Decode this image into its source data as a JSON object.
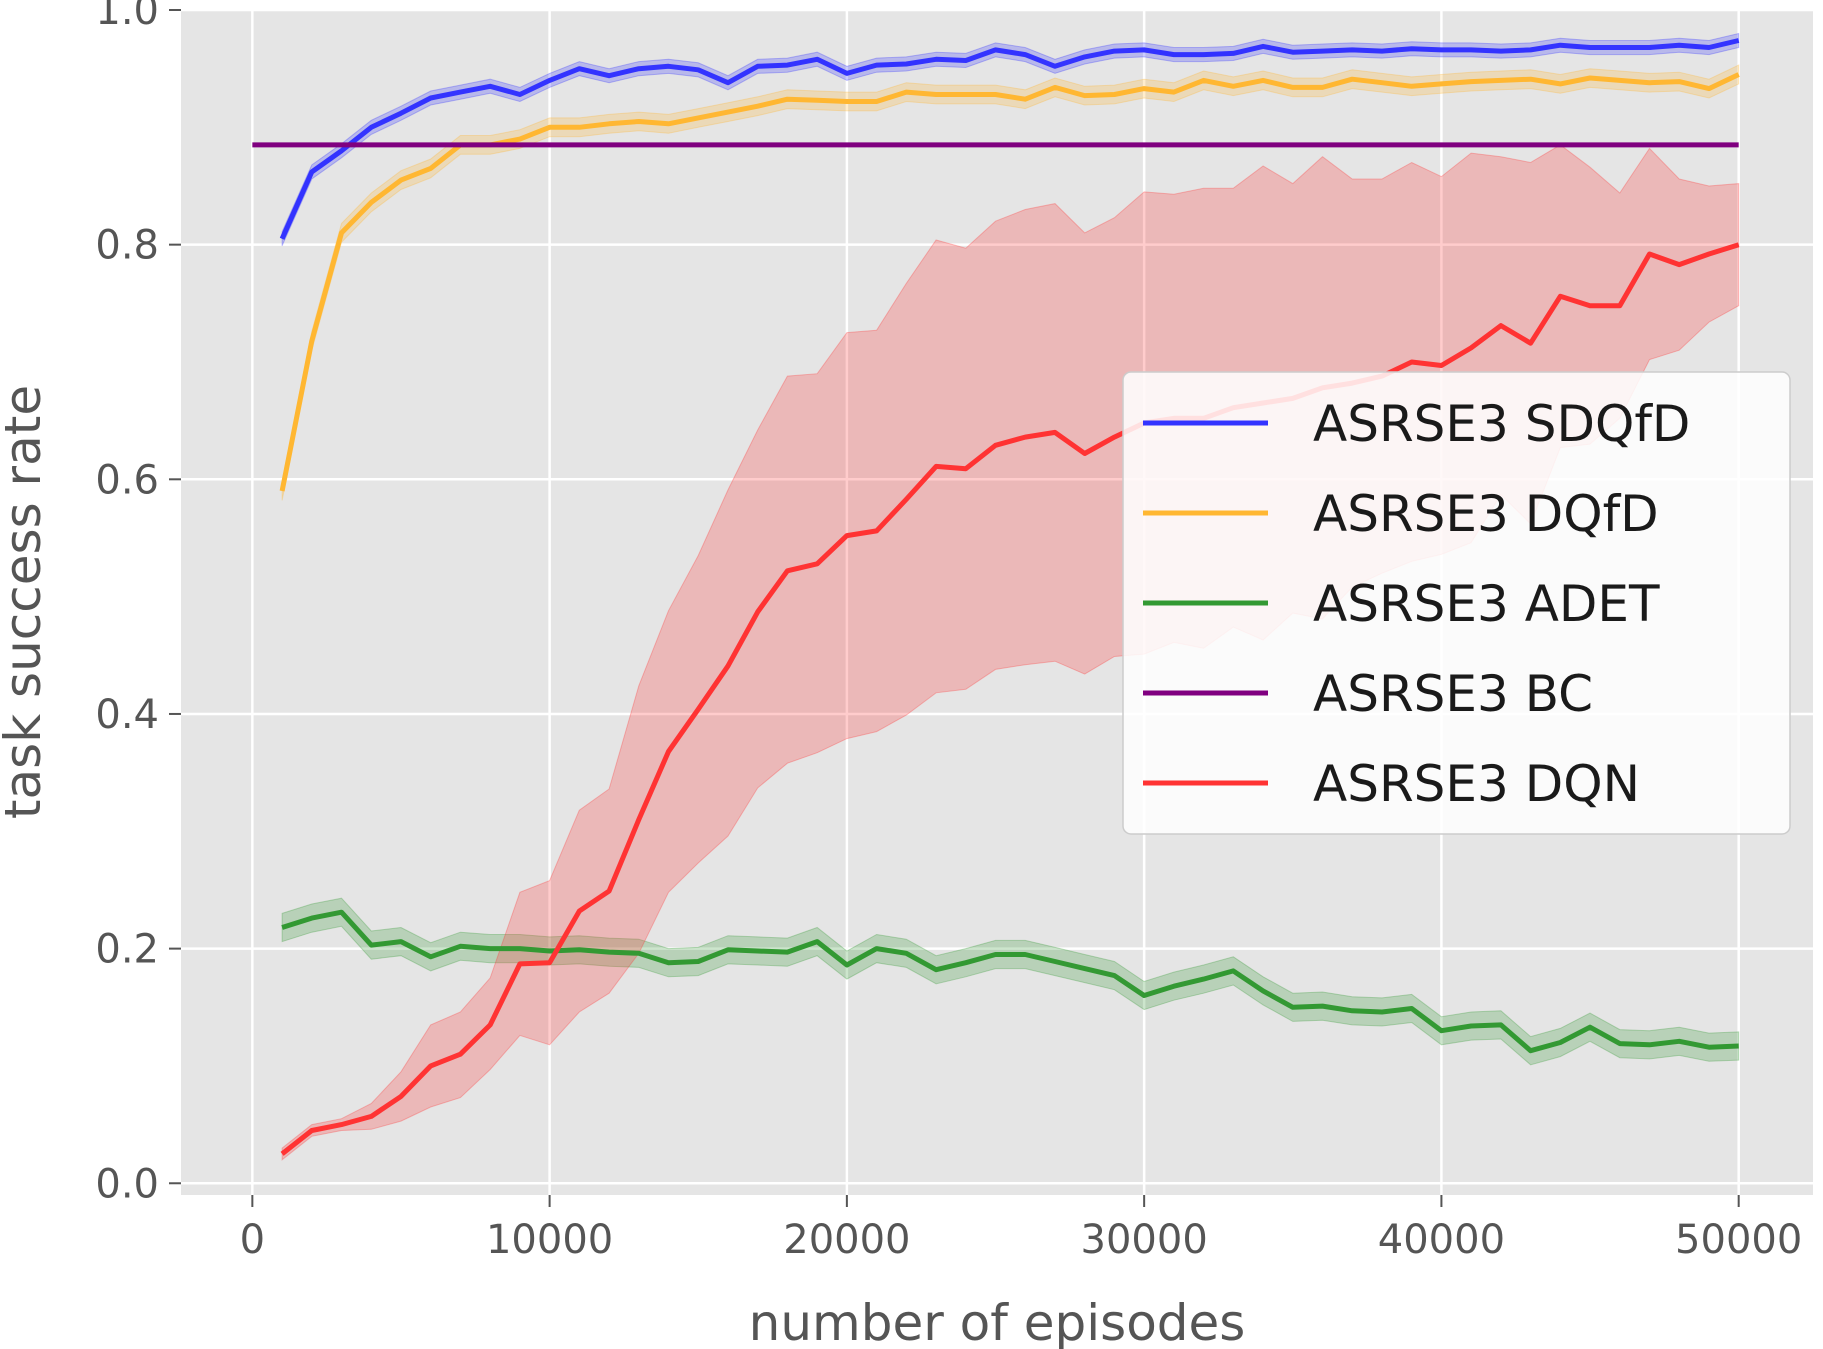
{
  "chart_data": {
    "type": "line",
    "title": "",
    "xlabel": "number of episodes",
    "ylabel": "task success rate",
    "xlim": [
      -2400,
      52500
    ],
    "ylim": [
      -0.01,
      1.0
    ],
    "xticks": [
      0,
      10000,
      20000,
      30000,
      40000,
      50000
    ],
    "xtick_labels": [
      "0",
      "10000",
      "20000",
      "30000",
      "40000",
      "50000"
    ],
    "yticks": [
      0.0,
      0.2,
      0.4,
      0.6,
      0.8,
      1.0
    ],
    "ytick_labels": [
      "0.0",
      "0.2",
      "0.4",
      "0.6",
      "0.8",
      "1.0"
    ],
    "grid": true,
    "background": "#e5e5e5",
    "legend_position": "center-right",
    "x": [
      1000,
      2000,
      3000,
      4000,
      5000,
      6000,
      7000,
      8000,
      9000,
      10000,
      11000,
      12000,
      13000,
      14000,
      15000,
      16000,
      17000,
      18000,
      19000,
      20000,
      21000,
      22000,
      23000,
      24000,
      25000,
      26000,
      27000,
      28000,
      29000,
      30000,
      31000,
      32000,
      33000,
      34000,
      35000,
      36000,
      37000,
      38000,
      39000,
      40000,
      41000,
      42000,
      43000,
      44000,
      45000,
      46000,
      47000,
      48000,
      49000,
      50000
    ],
    "series": [
      {
        "name": "ASRSE3 SDQfD",
        "color": "#3333ff",
        "values": [
          0.805,
          0.862,
          0.88,
          0.9,
          0.912,
          0.925,
          0.93,
          0.935,
          0.928,
          0.94,
          0.95,
          0.944,
          0.95,
          0.952,
          0.949,
          0.938,
          0.952,
          0.953,
          0.958,
          0.946,
          0.953,
          0.954,
          0.958,
          0.957,
          0.966,
          0.962,
          0.952,
          0.96,
          0.965,
          0.966,
          0.962,
          0.962,
          0.963,
          0.969,
          0.964,
          0.965,
          0.966,
          0.965,
          0.967,
          0.966,
          0.966,
          0.965,
          0.966,
          0.97,
          0.968,
          0.968,
          0.968,
          0.97,
          0.968,
          0.974
        ],
        "band": 0.006
      },
      {
        "name": "ASRSE3 DQfD",
        "color": "#ffb732",
        "values": [
          0.59,
          0.718,
          0.81,
          0.836,
          0.855,
          0.865,
          0.885,
          0.885,
          0.89,
          0.9,
          0.9,
          0.903,
          0.905,
          0.903,
          0.908,
          0.913,
          0.918,
          0.924,
          0.923,
          0.922,
          0.922,
          0.93,
          0.928,
          0.928,
          0.928,
          0.924,
          0.934,
          0.927,
          0.928,
          0.933,
          0.93,
          0.94,
          0.935,
          0.94,
          0.934,
          0.934,
          0.941,
          0.938,
          0.935,
          0.937,
          0.939,
          0.94,
          0.941,
          0.937,
          0.942,
          0.94,
          0.938,
          0.939,
          0.933,
          0.945
        ],
        "band": 0.008
      },
      {
        "name": "ASRSE3 ADET",
        "color": "#339933",
        "values": [
          0.218,
          0.226,
          0.231,
          0.203,
          0.206,
          0.193,
          0.202,
          0.2,
          0.2,
          0.198,
          0.199,
          0.197,
          0.196,
          0.188,
          0.189,
          0.199,
          0.198,
          0.197,
          0.206,
          0.186,
          0.2,
          0.196,
          0.182,
          0.188,
          0.195,
          0.195,
          0.189,
          0.183,
          0.177,
          0.16,
          0.168,
          0.174,
          0.181,
          0.164,
          0.15,
          0.151,
          0.147,
          0.146,
          0.149,
          0.13,
          0.134,
          0.135,
          0.113,
          0.12,
          0.133,
          0.119,
          0.118,
          0.121,
          0.116,
          0.117
        ],
        "band": 0.012
      },
      {
        "name": "ASRSE3 BC",
        "color": "#800080",
        "constant": 0.885,
        "x_range": [
          0,
          50000
        ]
      },
      {
        "name": "ASRSE3 DQN",
        "color": "#ff3333",
        "values": [
          0.025,
          0.045,
          0.05,
          0.057,
          0.074,
          0.1,
          0.11,
          0.135,
          0.187,
          0.188,
          0.232,
          0.249,
          0.31,
          0.368,
          0.404,
          0.441,
          0.487,
          0.522,
          0.528,
          0.552,
          0.556,
          0.583,
          0.611,
          0.609,
          0.629,
          0.636,
          0.64,
          0.622,
          0.636,
          0.648,
          0.652,
          0.652,
          0.661,
          0.665,
          0.669,
          0.678,
          0.682,
          0.688,
          0.7,
          0.697,
          0.712,
          0.731,
          0.716,
          0.756,
          0.748,
          0.748,
          0.792,
          0.783,
          0.792,
          0.8
        ],
        "upper": [
          0.03,
          0.05,
          0.055,
          0.068,
          0.095,
          0.135,
          0.146,
          0.175,
          0.248,
          0.258,
          0.318,
          0.336,
          0.424,
          0.488,
          0.535,
          0.591,
          0.642,
          0.688,
          0.69,
          0.725,
          0.727,
          0.767,
          0.804,
          0.797,
          0.82,
          0.83,
          0.835,
          0.81,
          0.823,
          0.845,
          0.843,
          0.848,
          0.848,
          0.867,
          0.852,
          0.875,
          0.856,
          0.856,
          0.87,
          0.858,
          0.878,
          0.875,
          0.87,
          0.885,
          0.866,
          0.844,
          0.882,
          0.856,
          0.85,
          0.852
        ],
        "lower": [
          0.02,
          0.04,
          0.045,
          0.046,
          0.053,
          0.065,
          0.073,
          0.097,
          0.126,
          0.118,
          0.146,
          0.162,
          0.196,
          0.248,
          0.273,
          0.296,
          0.337,
          0.358,
          0.367,
          0.379,
          0.385,
          0.399,
          0.418,
          0.421,
          0.438,
          0.442,
          0.445,
          0.434,
          0.449,
          0.451,
          0.461,
          0.456,
          0.474,
          0.463,
          0.486,
          0.481,
          0.508,
          0.52,
          0.53,
          0.536,
          0.546,
          0.587,
          0.562,
          0.627,
          0.63,
          0.652,
          0.702,
          0.71,
          0.734,
          0.748
        ]
      }
    ]
  }
}
